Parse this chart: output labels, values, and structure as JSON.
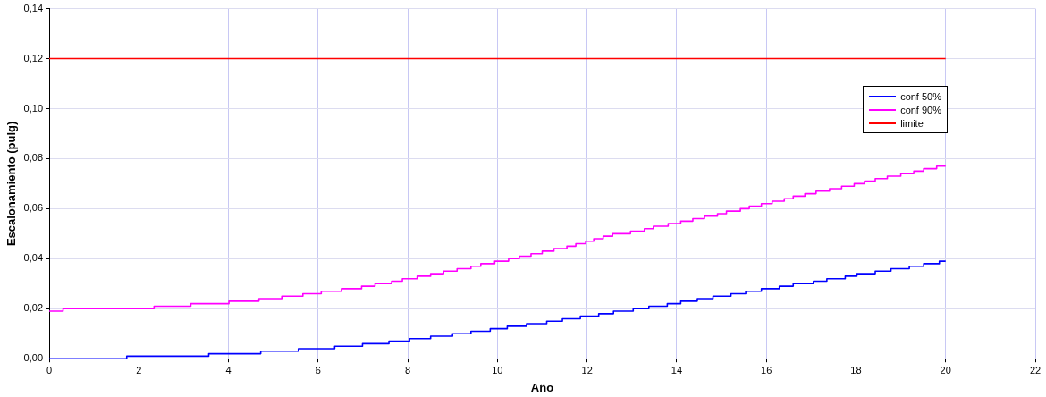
{
  "chart_data": {
    "type": "step",
    "xlabel": "Año",
    "ylabel": "Escalonamiento (pulg)",
    "xlim": [
      0,
      22
    ],
    "xticks": [
      0,
      2,
      4,
      6,
      8,
      10,
      12,
      14,
      16,
      18,
      20,
      22
    ],
    "ylim": [
      0,
      0.14
    ],
    "yticks": [
      {
        "value": 0,
        "label": "0,00"
      },
      {
        "value": 0.02,
        "label": "0,02"
      },
      {
        "value": 0.04,
        "label": "0,04"
      },
      {
        "value": 0.06,
        "label": "0,06"
      },
      {
        "value": 0.08,
        "label": "0,08"
      },
      {
        "value": 0.1,
        "label": "0,10"
      },
      {
        "value": 0.12,
        "label": "0,12"
      },
      {
        "value": 0.14,
        "label": "0,14"
      }
    ],
    "grid": true,
    "legend": "right",
    "marker": "none",
    "series": [
      {
        "name": "conf 50%",
        "color": "#0000ff",
        "x": [
          0,
          1.73,
          3.56,
          4.72,
          5.56,
          6.37,
          6.99,
          7.58,
          8.04,
          8.51,
          9.0,
          9.41,
          9.84,
          10.22,
          10.65,
          11.1,
          11.45,
          11.85,
          12.26,
          12.59,
          13.03,
          13.38,
          13.79,
          14.09,
          14.46,
          14.81,
          15.21,
          15.54,
          15.89,
          16.29,
          16.6,
          17.05,
          17.35,
          17.76,
          18.02,
          18.43,
          18.78,
          19.19,
          19.51,
          19.86,
          20
        ],
        "values": [
          0,
          0.001,
          0.002,
          0.003,
          0.004,
          0.005,
          0.006,
          0.007,
          0.008,
          0.009,
          0.01,
          0.011,
          0.012,
          0.013,
          0.014,
          0.015,
          0.016,
          0.017,
          0.018,
          0.019,
          0.02,
          0.021,
          0.022,
          0.023,
          0.024,
          0.025,
          0.026,
          0.027,
          0.028,
          0.029,
          0.03,
          0.031,
          0.032,
          0.033,
          0.034,
          0.035,
          0.036,
          0.037,
          0.038,
          0.039,
          0.039
        ]
      },
      {
        "name": "conf 90%",
        "color": "#ff00ff",
        "x": [
          0,
          0.31,
          2.34,
          3.16,
          4.01,
          4.68,
          5.19,
          5.66,
          6.07,
          6.52,
          6.97,
          7.27,
          7.64,
          7.88,
          8.21,
          8.51,
          8.8,
          9.1,
          9.41,
          9.63,
          9.94,
          10.25,
          10.49,
          10.75,
          11.0,
          11.26,
          11.55,
          11.75,
          11.97,
          12.15,
          12.36,
          12.57,
          12.97,
          13.28,
          13.48,
          13.81,
          14.09,
          14.36,
          14.62,
          14.91,
          15.11,
          15.42,
          15.62,
          15.89,
          16.13,
          16.4,
          16.6,
          16.86,
          17.11,
          17.41,
          17.68,
          17.96,
          18.19,
          18.43,
          18.7,
          19.0,
          19.29,
          19.51,
          19.8,
          20
        ],
        "values": [
          0.019,
          0.02,
          0.021,
          0.022,
          0.023,
          0.024,
          0.025,
          0.026,
          0.027,
          0.028,
          0.029,
          0.03,
          0.031,
          0.032,
          0.033,
          0.034,
          0.035,
          0.036,
          0.037,
          0.038,
          0.039,
          0.04,
          0.041,
          0.042,
          0.043,
          0.044,
          0.045,
          0.046,
          0.047,
          0.048,
          0.049,
          0.05,
          0.051,
          0.052,
          0.053,
          0.054,
          0.055,
          0.056,
          0.057,
          0.058,
          0.059,
          0.06,
          0.061,
          0.062,
          0.063,
          0.064,
          0.065,
          0.066,
          0.067,
          0.068,
          0.069,
          0.07,
          0.071,
          0.072,
          0.073,
          0.074,
          0.075,
          0.076,
          0.077,
          0.077
        ]
      },
      {
        "name": "limite",
        "color": "#ff0000",
        "type": "line",
        "x": [
          0,
          20
        ],
        "values": [
          0.12,
          0.12
        ]
      }
    ]
  }
}
